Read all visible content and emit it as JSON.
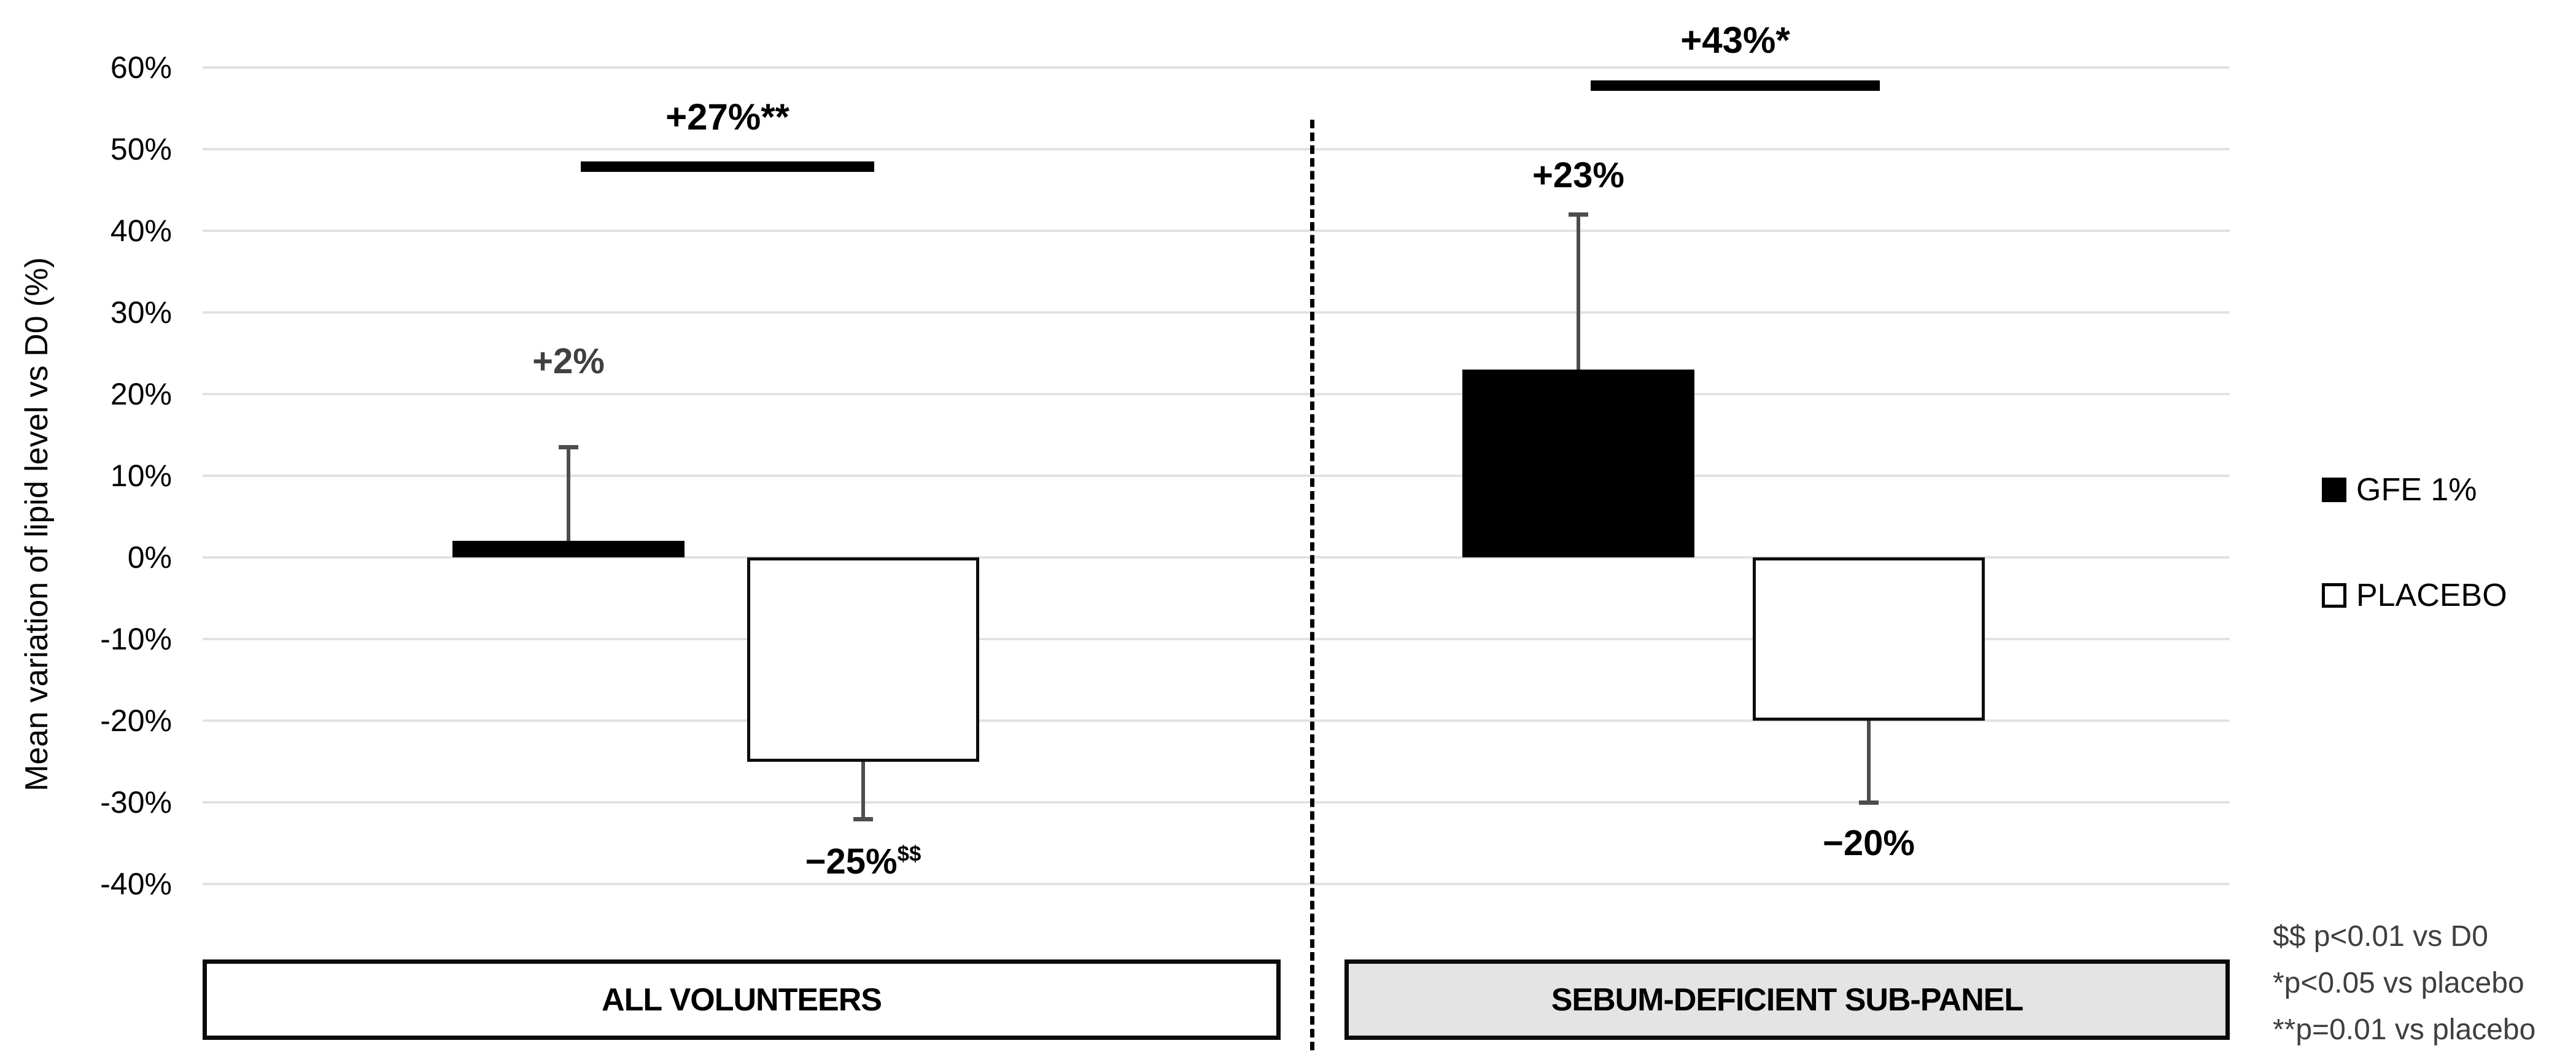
{
  "chart_data": {
    "type": "bar",
    "title": "",
    "xlabel": "",
    "ylabel": "Mean variation of lipid level vs D0 (%)",
    "ylim": [
      -45,
      65
    ],
    "grid": true,
    "legend_position": "right",
    "yticks": [
      {
        "label": "60%",
        "value": 60
      },
      {
        "label": "50%",
        "value": 50
      },
      {
        "label": "40%",
        "value": 40
      },
      {
        "label": "30%",
        "value": 30
      },
      {
        "label": "20%",
        "value": 20
      },
      {
        "label": "10%",
        "value": 10
      },
      {
        "label": "0%",
        "value": 0
      },
      {
        "label": "-10%",
        "value": -10
      },
      {
        "label": "-20%",
        "value": -20
      },
      {
        "label": "-30%",
        "value": -30
      },
      {
        "label": "-40%",
        "value": -40
      }
    ],
    "series": [
      "GFE 1%",
      "PLACEBO"
    ],
    "groups": [
      {
        "label": "ALL VOLUNTEERS",
        "bars": [
          {
            "series": "GFE 1%",
            "value": 2,
            "value_label": "+2%",
            "superscript": "",
            "error_to": 13.5,
            "label_y_pct": 24,
            "label_color": "#404040"
          },
          {
            "series": "PLACEBO",
            "value": -25,
            "value_label": "−25%",
            "superscript": "$$",
            "error_to": -32,
            "label_y_pct": -37.3,
            "label_color": "#000000"
          }
        ],
        "significance": {
          "label": "+27%**",
          "bracket_y_pct": 47.9,
          "label_y_pct": 53.8
        }
      },
      {
        "label": "SEBUM-DEFICIENT SUB-PANEL",
        "bars": [
          {
            "series": "GFE 1%",
            "value": 23,
            "value_label": "+23%",
            "superscript": "",
            "error_to": 42,
            "label_y_pct": 46.8,
            "label_color": "#000000"
          },
          {
            "series": "PLACEBO",
            "value": -20,
            "value_label": "−20%",
            "superscript": "",
            "error_to": -30,
            "label_y_pct": -35,
            "label_color": "#000000"
          }
        ],
        "significance": {
          "label": "+43%*",
          "bracket_y_pct": 57.8,
          "label_y_pct": 63.2
        }
      }
    ],
    "legend": [
      {
        "label": "GFE 1%",
        "swatch": "filled-black"
      },
      {
        "label": "PLACEBO",
        "swatch": "outlined-white"
      }
    ],
    "footnotes": [
      "$$ p<0.01 vs D0",
      "*p<0.05 vs placebo",
      "**p=0.01 vs placebo"
    ]
  },
  "colors": {
    "bar_filled": "#000000",
    "bar_outline_fill": "#ffffff",
    "bar_outline_stroke": "#0d0d0d",
    "gridline": "#e2e2e2",
    "error_bar": "#4d4d4d",
    "muted_label": "#404040",
    "footnote_text": "#3f3f3f",
    "subpanel_fill": "#e4e4e4",
    "panel_fill": "#ffffff",
    "divider": "#000000"
  }
}
